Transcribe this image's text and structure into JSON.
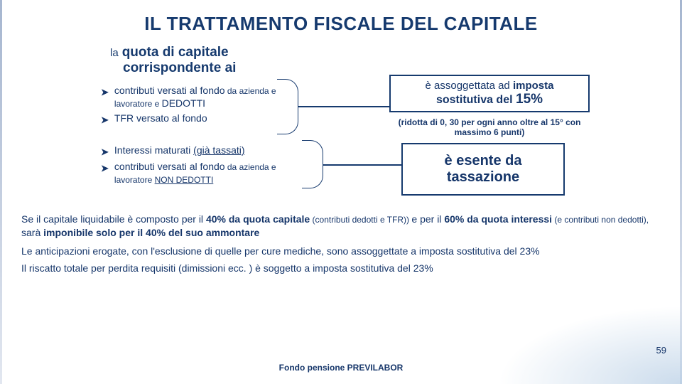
{
  "colors": {
    "primary": "#163a6e",
    "text": "#16366a",
    "background": "#ffffff"
  },
  "page_number": "59",
  "footer": "Fondo pensione PREVILABOR",
  "title": "IL TRATTAMENTO FISCALE DEL CAPITALE",
  "intro": {
    "la": "la",
    "quota": "quota di capitale",
    "line2": "corrispondente ai"
  },
  "groupA": {
    "items": [
      {
        "pre": "contributi versati al fondo",
        "mid": " da azienda e lavoratore e ",
        "post": "DEDOTTI"
      },
      {
        "full": "TFR versato al fondo"
      }
    ]
  },
  "groupB": {
    "items": [
      {
        "pre": "Interessi maturati ",
        "u": "(già tassati)"
      },
      {
        "pre": "contributi versati al fondo",
        "mid": " da  azienda e lavoratore ",
        "u": "NON DEDOTTI"
      }
    ]
  },
  "boxA": {
    "line1_pre": "è assoggettata ad ",
    "line1_bold": "imposta",
    "line2_pre": "sostitutiva del ",
    "percent": "15%"
  },
  "subA": "(ridotta di 0, 30 per ogni anno oltre al 15° con massimo 6 punti)",
  "boxB": {
    "line1": "è esente da",
    "line2": "tassazione"
  },
  "para1": {
    "p1": "Se il capitale liquidabile è composto per il ",
    "b1": "40% da quota capitale",
    "s1": " (contributi dedotti e TFR)) ",
    "p2": "e per il ",
    "b2": "60% da quota interessi",
    "s2": "  (e contributi non dedotti), ",
    "p3": "sarà ",
    "b3": "imponibile solo per il 40% del suo ammontare"
  },
  "para2": "Le anticipazioni erogate, con l'esclusione di quelle per cure mediche, sono assoggettate a imposta sostitutiva del 23%",
  "para3": "Il riscatto totale per perdita requisiti (dimissioni ecc. ) è soggetto a imposta sostitutiva del 23%"
}
